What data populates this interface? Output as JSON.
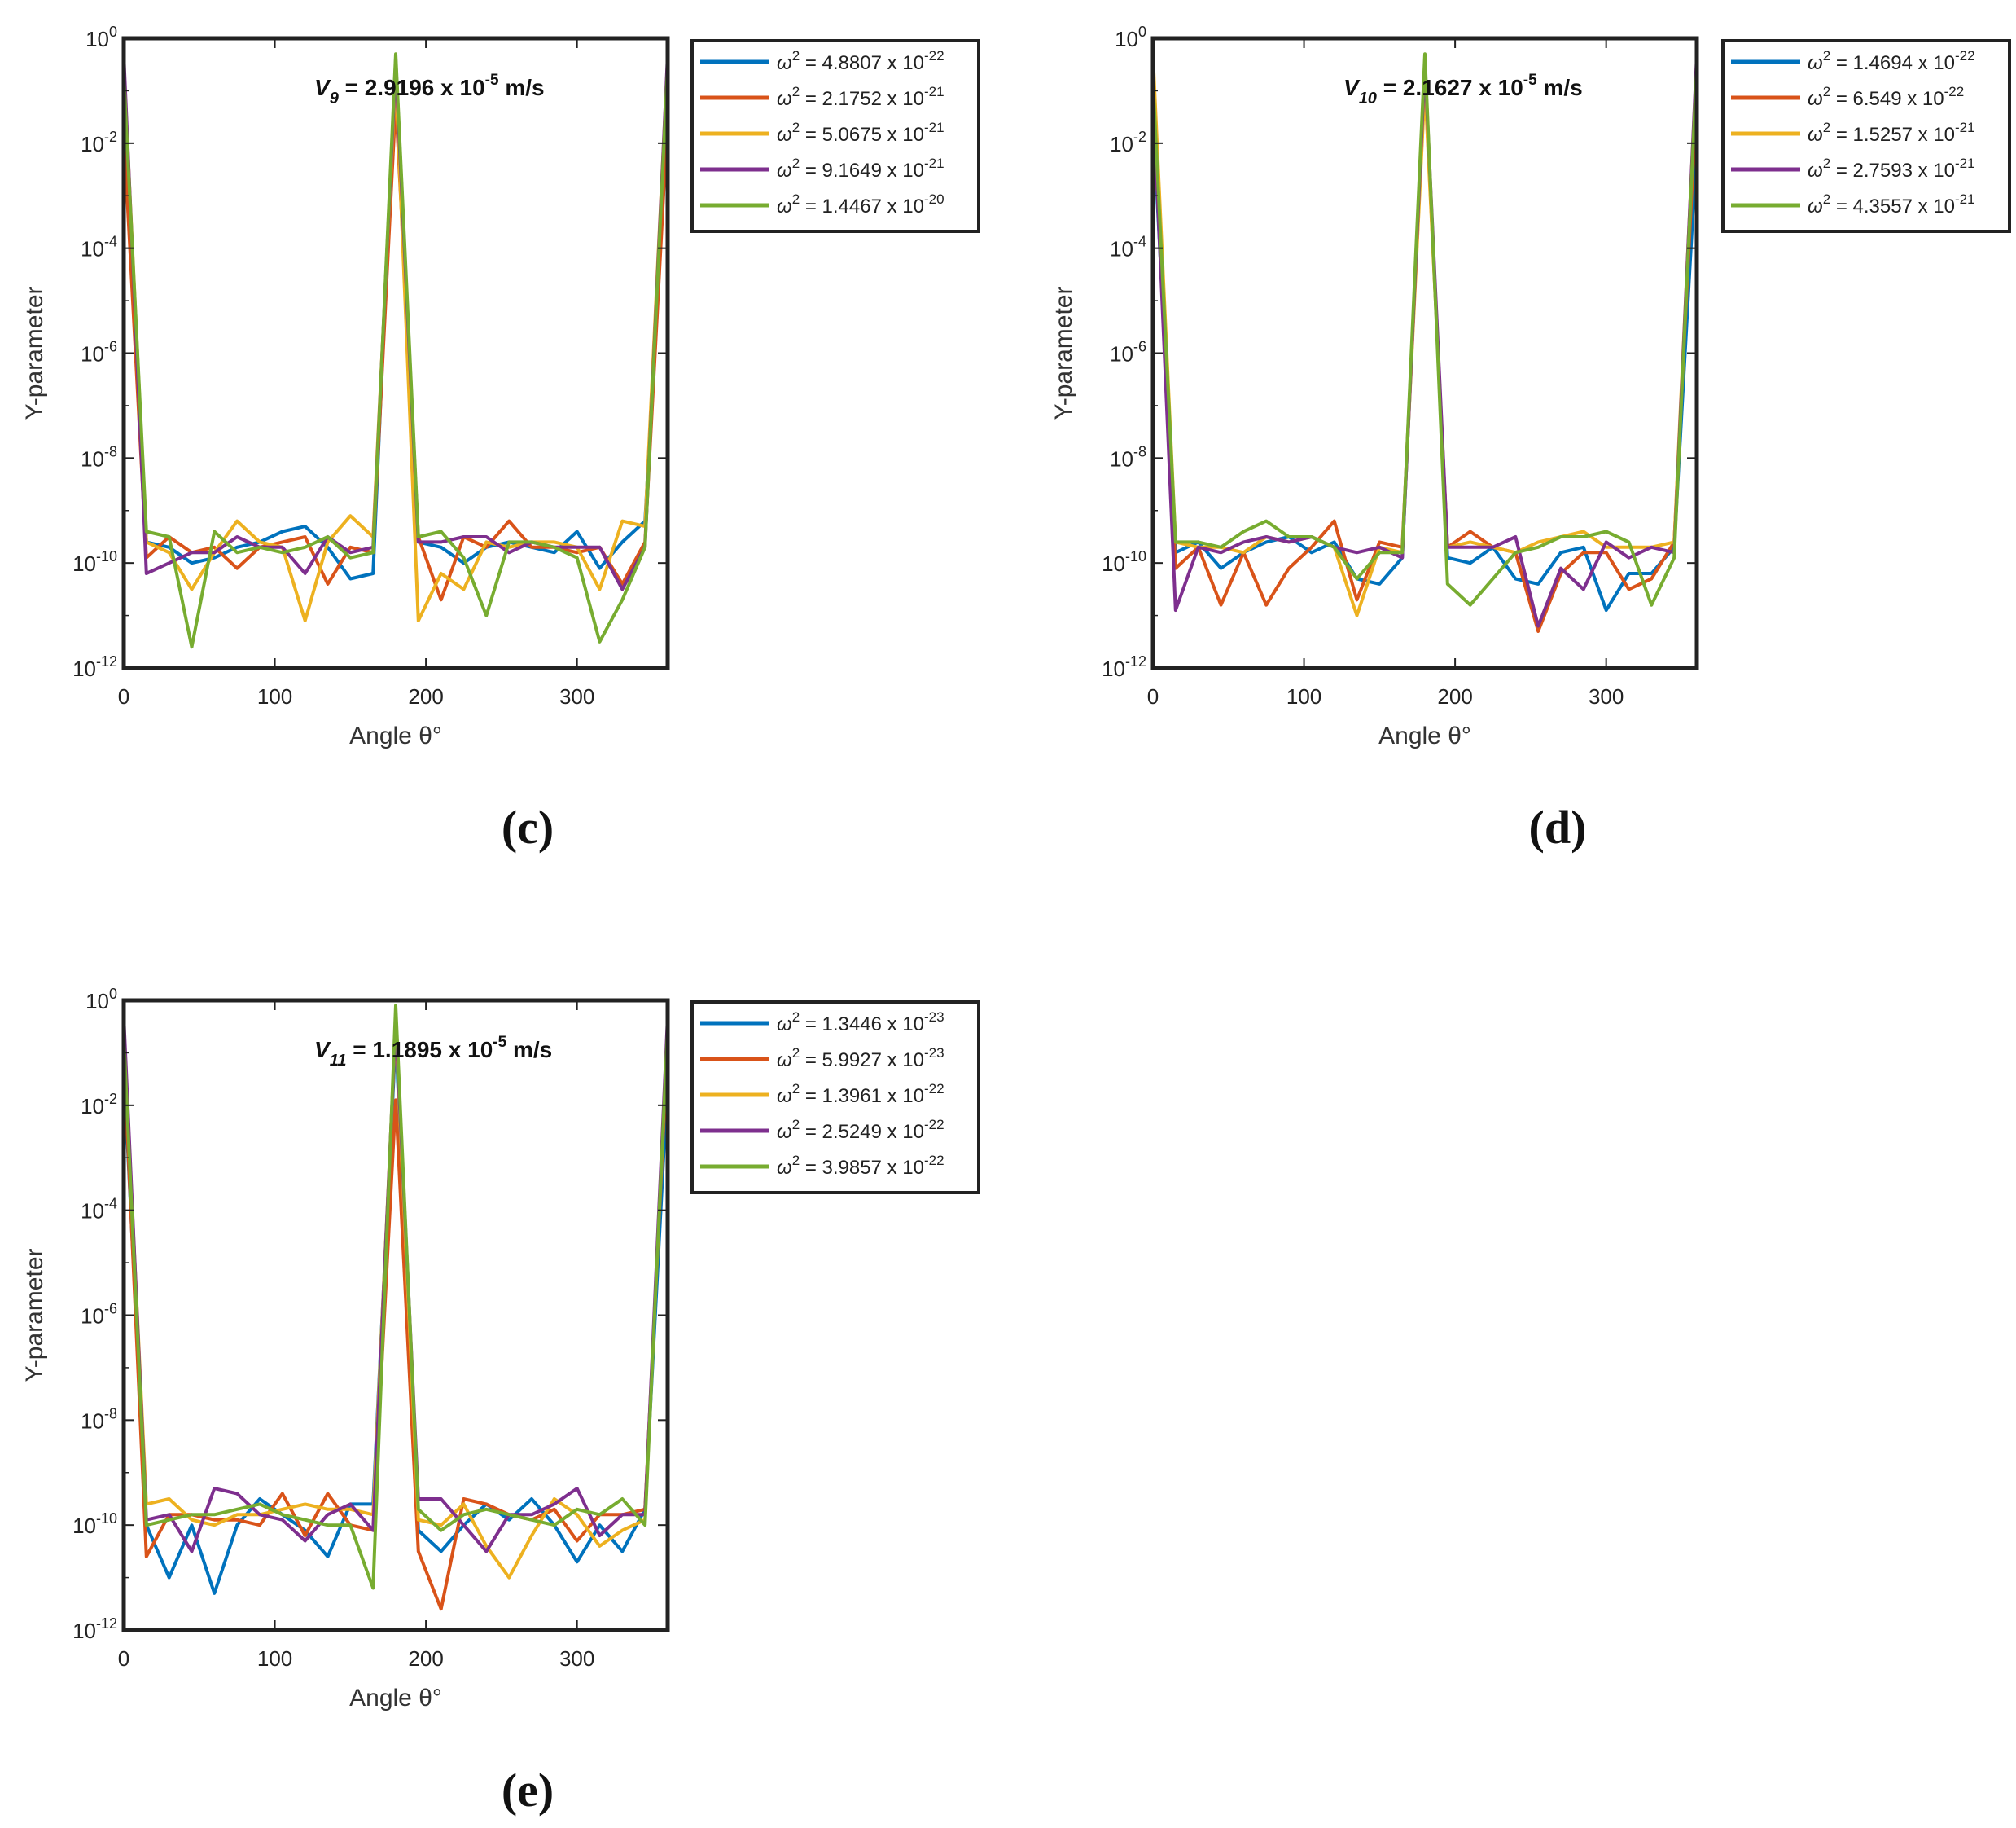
{
  "chart_data": [
    {
      "type": "line",
      "panel_label": "(c)",
      "xlabel": "Angle θ°",
      "ylabel": "Y-parameter",
      "annotation": {
        "symbol": "V",
        "sub": "9",
        "text": " = 2.9196 x 10",
        "exp": "-5",
        "unit": " m/s"
      },
      "xlim": [
        0,
        360
      ],
      "ylim_exp": [
        -12,
        0
      ],
      "xticks": [
        0,
        100,
        200,
        300
      ],
      "yticks_exp": [
        0,
        -2,
        -4,
        -6,
        -8,
        -10,
        -12
      ],
      "x": [
        0,
        15,
        30,
        45,
        60,
        75,
        90,
        105,
        120,
        135,
        150,
        165,
        180,
        195,
        210,
        225,
        240,
        255,
        270,
        285,
        300,
        315,
        330,
        345,
        360
      ],
      "series": [
        {
          "name": "ω² = 4.8807 x 10⁻²²",
          "mant": "4.8807",
          "exp": "-22",
          "color": "#0072BD",
          "log_values": [
            -1.2,
            -9.6,
            -9.7,
            -10.0,
            -9.9,
            -9.7,
            -9.6,
            -9.4,
            -9.3,
            -9.7,
            -10.3,
            -10.2,
            -0.4,
            -9.6,
            -9.7,
            -10.0,
            -9.7,
            -9.6,
            -9.7,
            -9.8,
            -9.4,
            -10.1,
            -9.6,
            -9.2,
            -1.5
          ]
        },
        {
          "name": "ω² = 2.1752 x 10⁻²¹",
          "mant": "2.1752",
          "exp": "-21",
          "color": "#D95319",
          "log_values": [
            -1.8,
            -9.9,
            -9.5,
            -9.8,
            -9.7,
            -10.1,
            -9.7,
            -9.6,
            -9.5,
            -10.4,
            -9.7,
            -9.8,
            -1.2,
            -9.5,
            -10.7,
            -9.5,
            -9.7,
            -9.2,
            -9.7,
            -9.7,
            -9.8,
            -9.7,
            -10.4,
            -9.6,
            -1.5
          ]
        },
        {
          "name": "ω² = 5.0675 x 10⁻²¹",
          "mant": "5.0675",
          "exp": "-21",
          "color": "#EDB120",
          "log_values": [
            -0.5,
            -9.6,
            -9.8,
            -10.5,
            -9.8,
            -9.2,
            -9.6,
            -9.7,
            -11.1,
            -9.6,
            -9.1,
            -9.5,
            -0.7,
            -11.1,
            -10.2,
            -10.5,
            -9.6,
            -9.7,
            -9.6,
            -9.6,
            -9.7,
            -10.5,
            -9.2,
            -9.3,
            -0.4
          ]
        },
        {
          "name": "ω² = 9.1649 x 10⁻²¹",
          "mant": "9.1649",
          "exp": "-21",
          "color": "#7E2F8E",
          "log_values": [
            -0.3,
            -10.2,
            -10.0,
            -9.8,
            -9.8,
            -9.5,
            -9.7,
            -9.7,
            -10.2,
            -9.5,
            -9.8,
            -9.7,
            -0.5,
            -9.6,
            -9.6,
            -9.5,
            -9.5,
            -9.8,
            -9.6,
            -9.7,
            -9.7,
            -9.7,
            -10.5,
            -9.7,
            -0.3
          ]
        },
        {
          "name": "ω² = 1.4467 x 10⁻²⁰",
          "mant": "1.4467",
          "exp": "-20",
          "color": "#77AC30",
          "log_values": [
            -0.7,
            -9.4,
            -9.5,
            -11.6,
            -9.4,
            -9.8,
            -9.7,
            -9.8,
            -9.7,
            -9.5,
            -9.9,
            -9.8,
            -0.3,
            -9.5,
            -9.4,
            -9.9,
            -11.0,
            -9.6,
            -9.6,
            -9.7,
            -9.9,
            -11.5,
            -10.7,
            -9.7,
            -0.5
          ]
        }
      ]
    },
    {
      "type": "line",
      "panel_label": "(d)",
      "xlabel": "Angle θ°",
      "ylabel": "Y-parameter",
      "annotation": {
        "symbol": "V",
        "sub": "10",
        "text": " = 2.1627 x 10",
        "exp": "-5",
        "unit": " m/s"
      },
      "xlim": [
        0,
        360
      ],
      "ylim_exp": [
        -12,
        0
      ],
      "xticks": [
        0,
        100,
        200,
        300
      ],
      "yticks_exp": [
        0,
        -2,
        -4,
        -6,
        -8,
        -10,
        -12
      ],
      "x": [
        0,
        15,
        30,
        45,
        60,
        75,
        90,
        105,
        120,
        135,
        150,
        165,
        180,
        195,
        210,
        225,
        240,
        255,
        270,
        285,
        300,
        315,
        330,
        345,
        360
      ],
      "series": [
        {
          "name": "ω² = 1.4694 x 10⁻²²",
          "mant": "1.4694",
          "exp": "-22",
          "color": "#0072BD",
          "log_values": [
            -1.5,
            -9.8,
            -9.6,
            -10.1,
            -9.8,
            -9.6,
            -9.5,
            -9.8,
            -9.6,
            -10.3,
            -10.4,
            -9.9,
            -0.6,
            -9.9,
            -10.0,
            -9.7,
            -10.3,
            -10.4,
            -9.8,
            -9.7,
            -10.9,
            -10.2,
            -10.2,
            -9.7,
            -2.0
          ]
        },
        {
          "name": "ω² = 6.549 x 10⁻²²",
          "mant": "6.549",
          "exp": "-22",
          "color": "#D95319",
          "log_values": [
            -1.2,
            -10.1,
            -9.7,
            -10.8,
            -9.8,
            -10.8,
            -10.1,
            -9.7,
            -9.2,
            -10.7,
            -9.6,
            -9.7,
            -0.8,
            -9.7,
            -9.4,
            -9.7,
            -9.8,
            -11.3,
            -10.2,
            -9.8,
            -9.8,
            -10.5,
            -10.3,
            -9.6,
            -1.0
          ]
        },
        {
          "name": "ω² = 1.5257 x 10⁻²¹",
          "mant": "1.5257",
          "exp": "-21",
          "color": "#EDB120",
          "log_values": [
            -0.3,
            -9.6,
            -9.7,
            -9.7,
            -9.8,
            -9.5,
            -9.6,
            -9.5,
            -9.7,
            -11.0,
            -9.7,
            -9.8,
            -0.9,
            -9.7,
            -9.6,
            -9.7,
            -9.8,
            -9.6,
            -9.5,
            -9.4,
            -9.7,
            -9.7,
            -9.7,
            -9.6,
            -0.4
          ]
        },
        {
          "name": "ω² = 2.7593 x 10⁻²¹",
          "mant": "2.7593",
          "exp": "-21",
          "color": "#7E2F8E",
          "log_values": [
            -1.0,
            -10.9,
            -9.7,
            -9.8,
            -9.6,
            -9.5,
            -9.6,
            -9.5,
            -9.7,
            -9.8,
            -9.7,
            -9.9,
            -0.5,
            -9.7,
            -9.7,
            -9.7,
            -9.5,
            -11.2,
            -10.1,
            -10.5,
            -9.6,
            -9.9,
            -9.7,
            -9.8,
            -0.3
          ]
        },
        {
          "name": "ω² = 4.3557 x 10⁻²¹",
          "mant": "4.3557",
          "exp": "-21",
          "color": "#77AC30",
          "log_values": [
            -0.8,
            -9.6,
            -9.6,
            -9.7,
            -9.4,
            -9.2,
            -9.5,
            -9.5,
            -9.7,
            -10.3,
            -9.8,
            -9.8,
            -0.3,
            -10.4,
            -10.8,
            -10.3,
            -9.8,
            -9.7,
            -9.5,
            -9.5,
            -9.4,
            -9.6,
            -10.8,
            -9.9,
            -0.5
          ]
        }
      ]
    },
    {
      "type": "line",
      "panel_label": "(e)",
      "xlabel": "Angle θ°",
      "ylabel": "Y-parameter",
      "annotation": {
        "symbol": "V",
        "sub": "11",
        "text": " = 1.1895 x 10",
        "exp": "-5",
        "unit": " m/s"
      },
      "xlim": [
        0,
        360
      ],
      "ylim_exp": [
        -12,
        0
      ],
      "xticks": [
        0,
        100,
        200,
        300
      ],
      "yticks_exp": [
        0,
        -2,
        -4,
        -6,
        -8,
        -10,
        -12
      ],
      "x": [
        0,
        15,
        30,
        45,
        60,
        75,
        90,
        105,
        120,
        135,
        150,
        165,
        180,
        195,
        210,
        225,
        240,
        255,
        270,
        285,
        300,
        315,
        330,
        345,
        360
      ],
      "series": [
        {
          "name": "ω² = 1.3446 x 10⁻²³",
          "mant": "1.3446",
          "exp": "-23",
          "color": "#0072BD",
          "log_values": [
            -1.3,
            -10.0,
            -11.0,
            -10.0,
            -11.3,
            -10.0,
            -9.5,
            -9.8,
            -10.1,
            -10.6,
            -9.6,
            -9.6,
            -0.7,
            -10.1,
            -10.5,
            -10.0,
            -9.6,
            -9.9,
            -9.5,
            -10.0,
            -10.7,
            -10.0,
            -10.5,
            -9.7,
            -1.5
          ]
        },
        {
          "name": "ω² = 5.9927 x 10⁻²³",
          "mant": "5.9927",
          "exp": "-23",
          "color": "#D95319",
          "log_values": [
            -1.0,
            -10.6,
            -9.8,
            -9.8,
            -9.9,
            -9.9,
            -10.0,
            -9.4,
            -10.2,
            -9.4,
            -10.0,
            -10.1,
            -1.9,
            -10.5,
            -11.6,
            -9.5,
            -9.6,
            -9.8,
            -9.9,
            -9.7,
            -10.3,
            -9.8,
            -9.8,
            -9.7,
            -0.8
          ]
        },
        {
          "name": "ω² = 1.3961 x 10⁻²²",
          "mant": "1.3961",
          "exp": "-22",
          "color": "#EDB120",
          "log_values": [
            -0.6,
            -9.6,
            -9.5,
            -9.9,
            -10.0,
            -9.8,
            -9.8,
            -9.7,
            -9.6,
            -9.7,
            -9.7,
            -9.8,
            -0.5,
            -9.9,
            -10.0,
            -9.6,
            -10.4,
            -11.0,
            -10.2,
            -9.5,
            -9.8,
            -10.4,
            -10.1,
            -9.9,
            -0.5
          ]
        },
        {
          "name": "ω² = 2.5249 x 10⁻²²",
          "mant": "2.5249",
          "exp": "-22",
          "color": "#7E2F8E",
          "log_values": [
            -0.3,
            -9.9,
            -9.8,
            -10.5,
            -9.3,
            -9.4,
            -9.8,
            -9.9,
            -10.3,
            -9.8,
            -9.6,
            -10.1,
            -0.4,
            -9.5,
            -9.5,
            -10.0,
            -10.5,
            -9.8,
            -9.8,
            -9.6,
            -9.3,
            -10.2,
            -9.8,
            -9.8,
            -0.3
          ]
        },
        {
          "name": "ω² = 3.9857 x 10⁻²²",
          "mant": "3.9857",
          "exp": "-22",
          "color": "#77AC30",
          "log_values": [
            -0.7,
            -10.0,
            -9.9,
            -9.8,
            -9.8,
            -9.7,
            -9.6,
            -9.8,
            -9.9,
            -10.0,
            -10.0,
            -11.2,
            -0.1,
            -9.7,
            -10.1,
            -9.8,
            -9.7,
            -9.8,
            -9.9,
            -10.0,
            -9.7,
            -9.8,
            -9.5,
            -10.0,
            -0.5
          ]
        }
      ]
    }
  ]
}
